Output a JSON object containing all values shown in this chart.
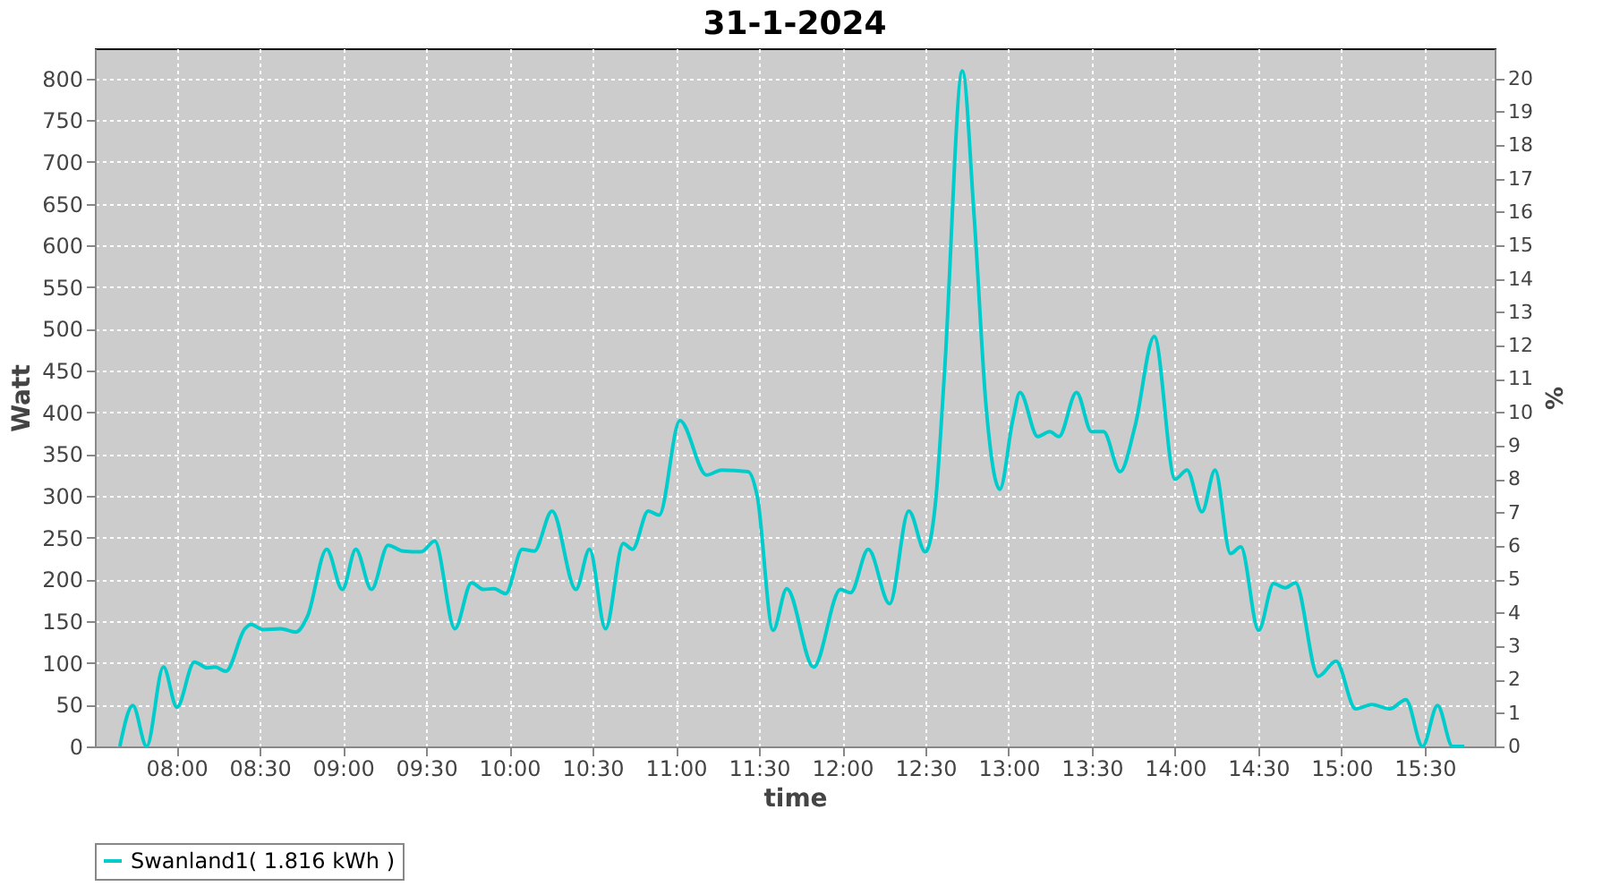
{
  "chart_data": {
    "type": "line",
    "title": "31-1-2024",
    "xlabel": "time",
    "ylabel": "Watt",
    "y2label": "%",
    "xlim": [
      7.51,
      15.92
    ],
    "xticks": [
      {
        "value": 8,
        "label": "08:00"
      },
      {
        "value": 8.5,
        "label": "08:30"
      },
      {
        "value": 9,
        "label": "09:00"
      },
      {
        "value": 9.5,
        "label": "09:30"
      },
      {
        "value": 10,
        "label": "10:00"
      },
      {
        "value": 10.5,
        "label": "10:30"
      },
      {
        "value": 11,
        "label": "11:00"
      },
      {
        "value": 11.5,
        "label": "11:30"
      },
      {
        "value": 12,
        "label": "12:00"
      },
      {
        "value": 12.5,
        "label": "12:30"
      },
      {
        "value": 13,
        "label": "13:00"
      },
      {
        "value": 13.5,
        "label": "13:30"
      },
      {
        "value": 14,
        "label": "14:00"
      },
      {
        "value": 14.5,
        "label": "14:30"
      },
      {
        "value": 15,
        "label": "15:00"
      },
      {
        "value": 15.5,
        "label": "15:30"
      }
    ],
    "ylim": [
      0,
      836
    ],
    "yticks": [
      0,
      50,
      100,
      150,
      200,
      250,
      300,
      350,
      400,
      450,
      500,
      550,
      600,
      650,
      700,
      750,
      800
    ],
    "y2lim": [
      0,
      20.9
    ],
    "y2ticks": [
      0,
      1,
      2,
      3,
      4,
      5,
      6,
      7,
      8,
      9,
      10,
      11,
      12,
      13,
      14,
      15,
      16,
      17,
      18,
      19,
      20
    ],
    "grid": true,
    "legend": "bottom",
    "marker": "none",
    "line_style": "solid",
    "series": [
      {
        "name": "Swanland1( 1.816 kWh )",
        "color": "#00cccc",
        "x": [
          7.66,
          7.738,
          7.821,
          7.922,
          8.003,
          8.108,
          8.187,
          8.233,
          8.297,
          8.412,
          8.448,
          8.52,
          8.627,
          8.717,
          8.788,
          8.903,
          8.997,
          9.078,
          9.172,
          9.272,
          9.362,
          9.47,
          9.552,
          9.673,
          9.773,
          9.845,
          9.907,
          9.978,
          10.078,
          10.15,
          10.257,
          10.4,
          10.482,
          10.578,
          10.685,
          10.74,
          10.835,
          10.9,
          11.025,
          11.185,
          11.275,
          11.435,
          11.49,
          11.585,
          11.667,
          11.828,
          11.99,
          12.05,
          12.157,
          12.285,
          12.4,
          12.5,
          12.56,
          12.615,
          12.722,
          12.793,
          12.865,
          12.947,
          13.025,
          13.068,
          13.175,
          13.247,
          13.302,
          13.408,
          13.498,
          13.57,
          13.67,
          13.76,
          13.875,
          14.0,
          14.072,
          14.162,
          14.24,
          14.333,
          14.395,
          14.502,
          14.592,
          14.663,
          14.723,
          14.86,
          14.967,
          15.085,
          15.182,
          15.29,
          15.387,
          15.487,
          15.577,
          15.667,
          15.738
        ],
        "values": [
          0,
          49,
          0,
          95,
          47,
          101,
          94,
          95,
          90,
          141,
          146,
          140,
          141,
          137,
          156,
          236,
          188,
          236,
          188,
          241,
          234,
          233,
          246,
          141,
          196,
          188,
          189,
          183,
          236,
          234,
          282,
          188,
          236,
          141,
          243,
          236,
          282,
          277,
          390,
          325,
          331,
          329,
          299,
          139,
          189,
          95,
          188,
          184,
          236,
          171,
          282,
          233,
          291,
          449,
          809,
          634,
          406,
          308,
          391,
          424,
          371,
          377,
          371,
          424,
          377,
          377,
          329,
          384,
          491,
          320,
          331,
          281,
          331,
          231,
          239,
          139,
          195,
          190,
          196,
          84,
          102,
          45,
          50,
          45,
          56,
          0,
          49,
          0,
          0
        ]
      }
    ]
  }
}
